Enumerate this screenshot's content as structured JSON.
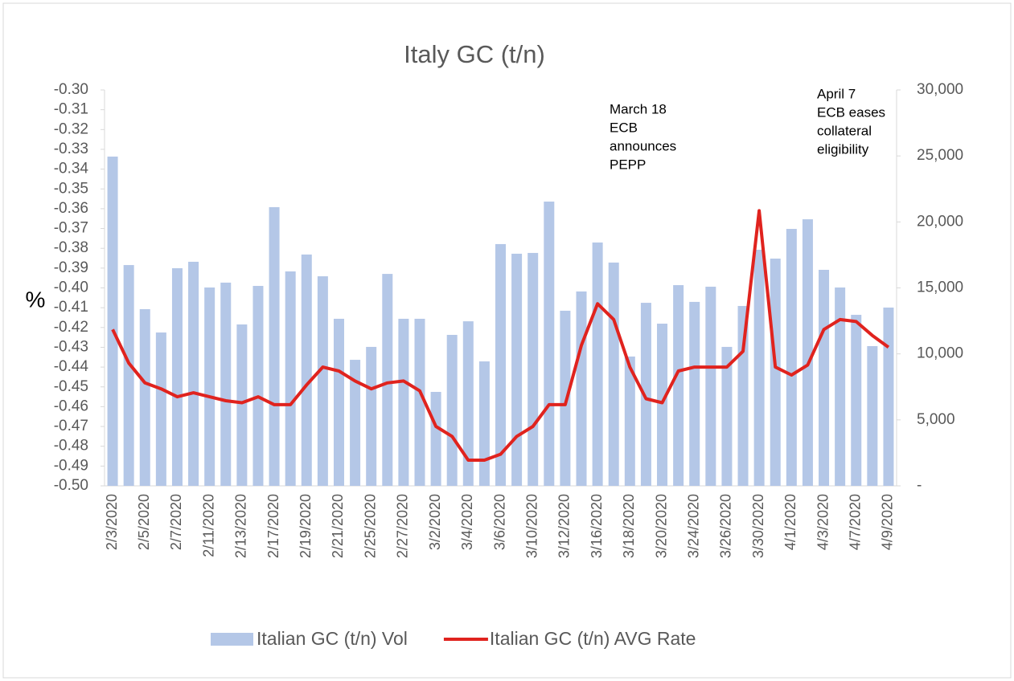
{
  "chart_data": {
    "type": "bar-line",
    "title": "Italy GC (t/n)",
    "y_label": "%",
    "categories": [
      "2/3/2020",
      null,
      "2/5/2020",
      null,
      "2/7/2020",
      null,
      "2/11/2020",
      null,
      "2/13/2020",
      null,
      "2/17/2020",
      null,
      "2/19/2020",
      null,
      "2/21/2020",
      null,
      "2/25/2020",
      null,
      "2/27/2020",
      null,
      "3/2/2020",
      null,
      "3/4/2020",
      null,
      "3/6/2020",
      null,
      "3/10/2020",
      null,
      "3/12/2020",
      null,
      "3/16/2020",
      null,
      "3/18/2020",
      null,
      "3/20/2020",
      null,
      "3/24/2020",
      null,
      "3/26/2020",
      null,
      "3/30/2020",
      null,
      "4/1/2020",
      null,
      "4/3/2020",
      null,
      "4/7/2020",
      null,
      "4/9/2020"
    ],
    "series": [
      {
        "name": "Italian GC (t/n) Vol",
        "type": "bar",
        "axis": "y2",
        "color": "#b4c7e7",
        "values": [
          24950,
          16730,
          13390,
          11620,
          16490,
          16980,
          15030,
          15400,
          12230,
          15150,
          21120,
          16250,
          17530,
          15880,
          12660,
          9550,
          10530,
          16060,
          12660,
          12660,
          7120,
          11440,
          12470,
          9430,
          18320,
          17590,
          17650,
          21540,
          13270,
          14730,
          18440,
          16920,
          9800,
          13870,
          12290,
          15210,
          13940,
          15090,
          10530,
          13630,
          17890,
          17220,
          19470,
          20200,
          16370,
          15030,
          12960,
          10590,
          13510
        ]
      },
      {
        "name": "Italian GC (t/n) AVG Rate",
        "type": "line",
        "axis": "y",
        "color": "#e0231e",
        "values": [
          -0.421,
          -0.438,
          -0.448,
          -0.451,
          -0.455,
          -0.453,
          -0.455,
          -0.457,
          -0.458,
          -0.455,
          -0.459,
          -0.459,
          -0.449,
          -0.44,
          -0.442,
          -0.447,
          -0.451,
          -0.448,
          -0.447,
          -0.452,
          -0.47,
          -0.475,
          -0.487,
          -0.487,
          -0.484,
          -0.475,
          -0.47,
          -0.459,
          -0.459,
          -0.429,
          -0.408,
          -0.416,
          -0.44,
          -0.456,
          -0.458,
          -0.442,
          -0.44,
          -0.44,
          -0.44,
          -0.432,
          -0.361,
          -0.44,
          -0.444,
          -0.439,
          -0.421,
          -0.416,
          -0.417,
          -0.424,
          -0.43
        ]
      }
    ],
    "ylim": [
      -0.5,
      -0.3
    ],
    "yticks": [
      {
        "value": -0.5,
        "label": "-0.50"
      },
      {
        "value": -0.49,
        "label": "-0.49"
      },
      {
        "value": -0.48,
        "label": "-0.48"
      },
      {
        "value": -0.47,
        "label": "-0.47"
      },
      {
        "value": -0.46,
        "label": "-0.46"
      },
      {
        "value": -0.45,
        "label": "-0.45"
      },
      {
        "value": -0.44,
        "label": "-0.44"
      },
      {
        "value": -0.43,
        "label": "-0.43"
      },
      {
        "value": -0.42,
        "label": "-0.42"
      },
      {
        "value": -0.41,
        "label": "-0.41"
      },
      {
        "value": -0.4,
        "label": "-0.40"
      },
      {
        "value": -0.39,
        "label": "-0.39"
      },
      {
        "value": -0.38,
        "label": "-0.38"
      },
      {
        "value": -0.37,
        "label": "-0.37"
      },
      {
        "value": -0.36,
        "label": "-0.36"
      },
      {
        "value": -0.35,
        "label": "-0.35"
      },
      {
        "value": -0.34,
        "label": "-0.34"
      },
      {
        "value": -0.33,
        "label": "-0.33"
      },
      {
        "value": -0.32,
        "label": "-0.32"
      },
      {
        "value": -0.31,
        "label": "-0.31"
      },
      {
        "value": -0.3,
        "label": "-0.30"
      }
    ],
    "y2lim": [
      0,
      30000
    ],
    "y2ticks": [
      {
        "value": 0,
        "label": "-"
      },
      {
        "value": 5000,
        "label": "5,000"
      },
      {
        "value": 10000,
        "label": "10,000"
      },
      {
        "value": 15000,
        "label": "15,000"
      },
      {
        "value": 20000,
        "label": "20,000"
      },
      {
        "value": 25000,
        "label": "25,000"
      },
      {
        "value": 30000,
        "label": "30,000"
      }
    ],
    "annotations": [
      {
        "lines": [
          "March 18",
          "ECB",
          "announces",
          "PEPP"
        ]
      },
      {
        "lines": [
          "April 7",
          "ECB eases",
          "collateral",
          "eligibility"
        ]
      }
    ],
    "legend": "bottom"
  }
}
